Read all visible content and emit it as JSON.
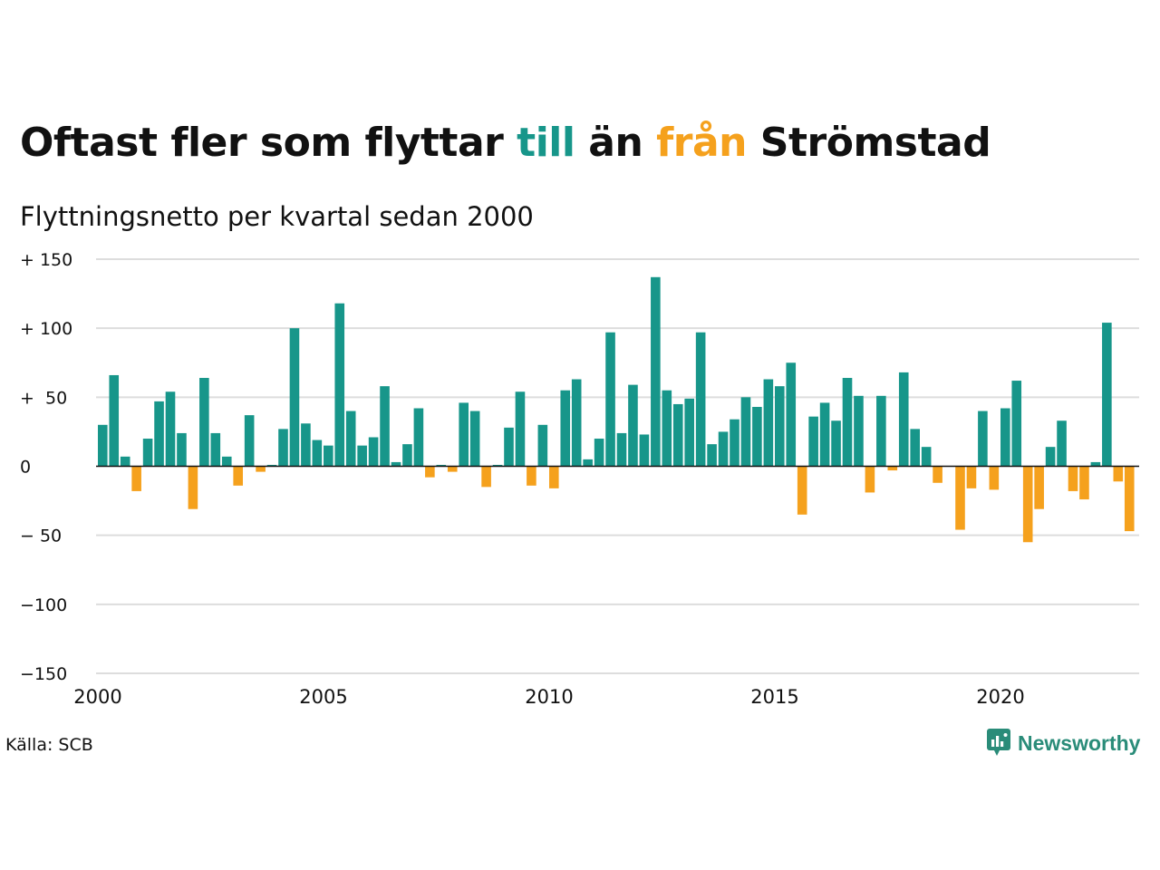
{
  "header": {
    "title_part1": "Oftast fler som flyttar ",
    "title_till": "till",
    "title_part2": " än ",
    "title_fran": "från",
    "title_part3": " Strömstad",
    "subtitle": "Flyttningsnetto per kvartal sedan 2000"
  },
  "footer": {
    "source": "Källa: SCB",
    "brand": "Newsworthy",
    "brand_icon": "newsworthy-logo-icon"
  },
  "colors": {
    "positive": "#17968a",
    "negative": "#f5a11d",
    "brand": "#2a8c79",
    "grid": "#dddddd"
  },
  "chart_data": {
    "type": "bar",
    "title": "Oftast fler som flyttar till än från Strömstad",
    "subtitle": "Flyttningsnetto per kvartal sedan 2000",
    "x_start": "2000 Q1",
    "x_ticks": [
      "2000",
      "2005",
      "2010",
      "2015",
      "2020"
    ],
    "y_ticks": [
      "+ 150",
      "+ 100",
      "+  50",
      "0",
      "− 50",
      "−100",
      "−150"
    ],
    "y_tick_values": [
      150,
      100,
      50,
      0,
      -50,
      -100,
      -150
    ],
    "ylim": [
      -150,
      150
    ],
    "grid": true,
    "values": [
      30,
      66,
      7,
      -18,
      20,
      47,
      54,
      24,
      -31,
      64,
      24,
      7,
      -14,
      37,
      -4,
      1,
      27,
      100,
      31,
      19,
      15,
      118,
      40,
      15,
      21,
      58,
      3,
      16,
      42,
      -8,
      1,
      -4,
      46,
      40,
      -15,
      1,
      28,
      54,
      -14,
      30,
      -16,
      55,
      63,
      5,
      20,
      97,
      24,
      59,
      23,
      137,
      55,
      45,
      49,
      97,
      16,
      25,
      34,
      50,
      43,
      63,
      58,
      75,
      -35,
      36,
      46,
      33,
      64,
      51,
      -19,
      51,
      -3,
      68,
      27,
      14,
      -12,
      0,
      -46,
      -16,
      40,
      -17,
      42,
      62,
      -55,
      -31,
      14,
      33,
      -18,
      -24,
      3,
      104,
      -11,
      -47
    ]
  }
}
